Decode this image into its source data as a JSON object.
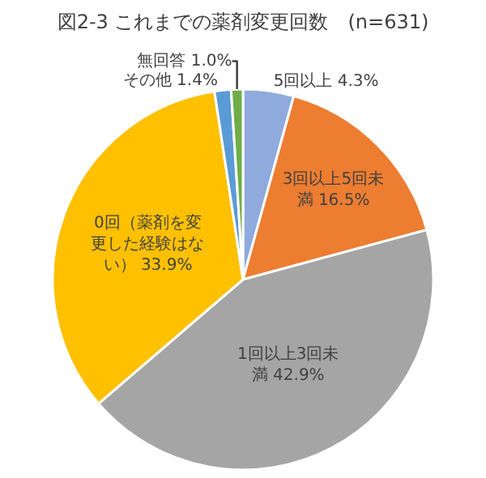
{
  "chart_data": {
    "type": "pie",
    "title": "図2-3 これまでの薬剤変更回数　(n=631)",
    "categories": [
      "5回以上",
      "3回以上5回未満",
      "1回以上3回未満",
      "0回（薬剤を変更した経験はない）",
      "その他",
      "無回答"
    ],
    "values": [
      4.3,
      16.5,
      42.9,
      33.9,
      1.4,
      1.0
    ],
    "colors": [
      "#8faadc",
      "#ed7d31",
      "#a5a5a5",
      "#ffc000",
      "#5b9bd5",
      "#70ad47"
    ],
    "value_labels": [
      "4.3%",
      "16.5%",
      "42.9%",
      "33.9%",
      "1.4%",
      "1.0%"
    ],
    "legend": false
  }
}
